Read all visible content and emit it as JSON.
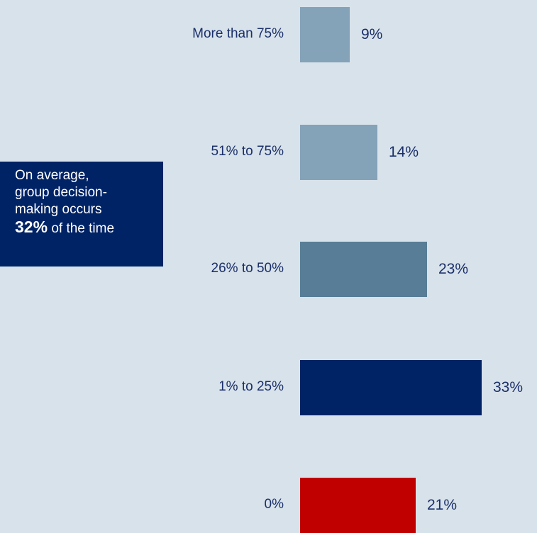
{
  "chart_data": {
    "type": "bar",
    "orientation": "horizontal",
    "categories": [
      "More than 75%",
      "51% to 75%",
      "26% to 50%",
      "1% to 25%",
      "0%"
    ],
    "values": [
      9,
      14,
      23,
      33,
      21
    ],
    "value_labels": [
      "9%",
      "14%",
      "23%",
      "33%",
      "21%"
    ],
    "bar_colors": [
      "#84a2b8",
      "#84a2b8",
      "#587d96",
      "#002366",
      "#c00000"
    ],
    "xlim": [
      0,
      33
    ],
    "grid": false,
    "legend": "none"
  },
  "callout": {
    "line1": "On average,",
    "line2": "group decision-",
    "line3": "making occurs",
    "highlight": "32%",
    "tail": " of the time"
  },
  "colors": {
    "background": "#d8e2ea",
    "callout_bg": "#002366",
    "text": "#1a2f6a"
  }
}
